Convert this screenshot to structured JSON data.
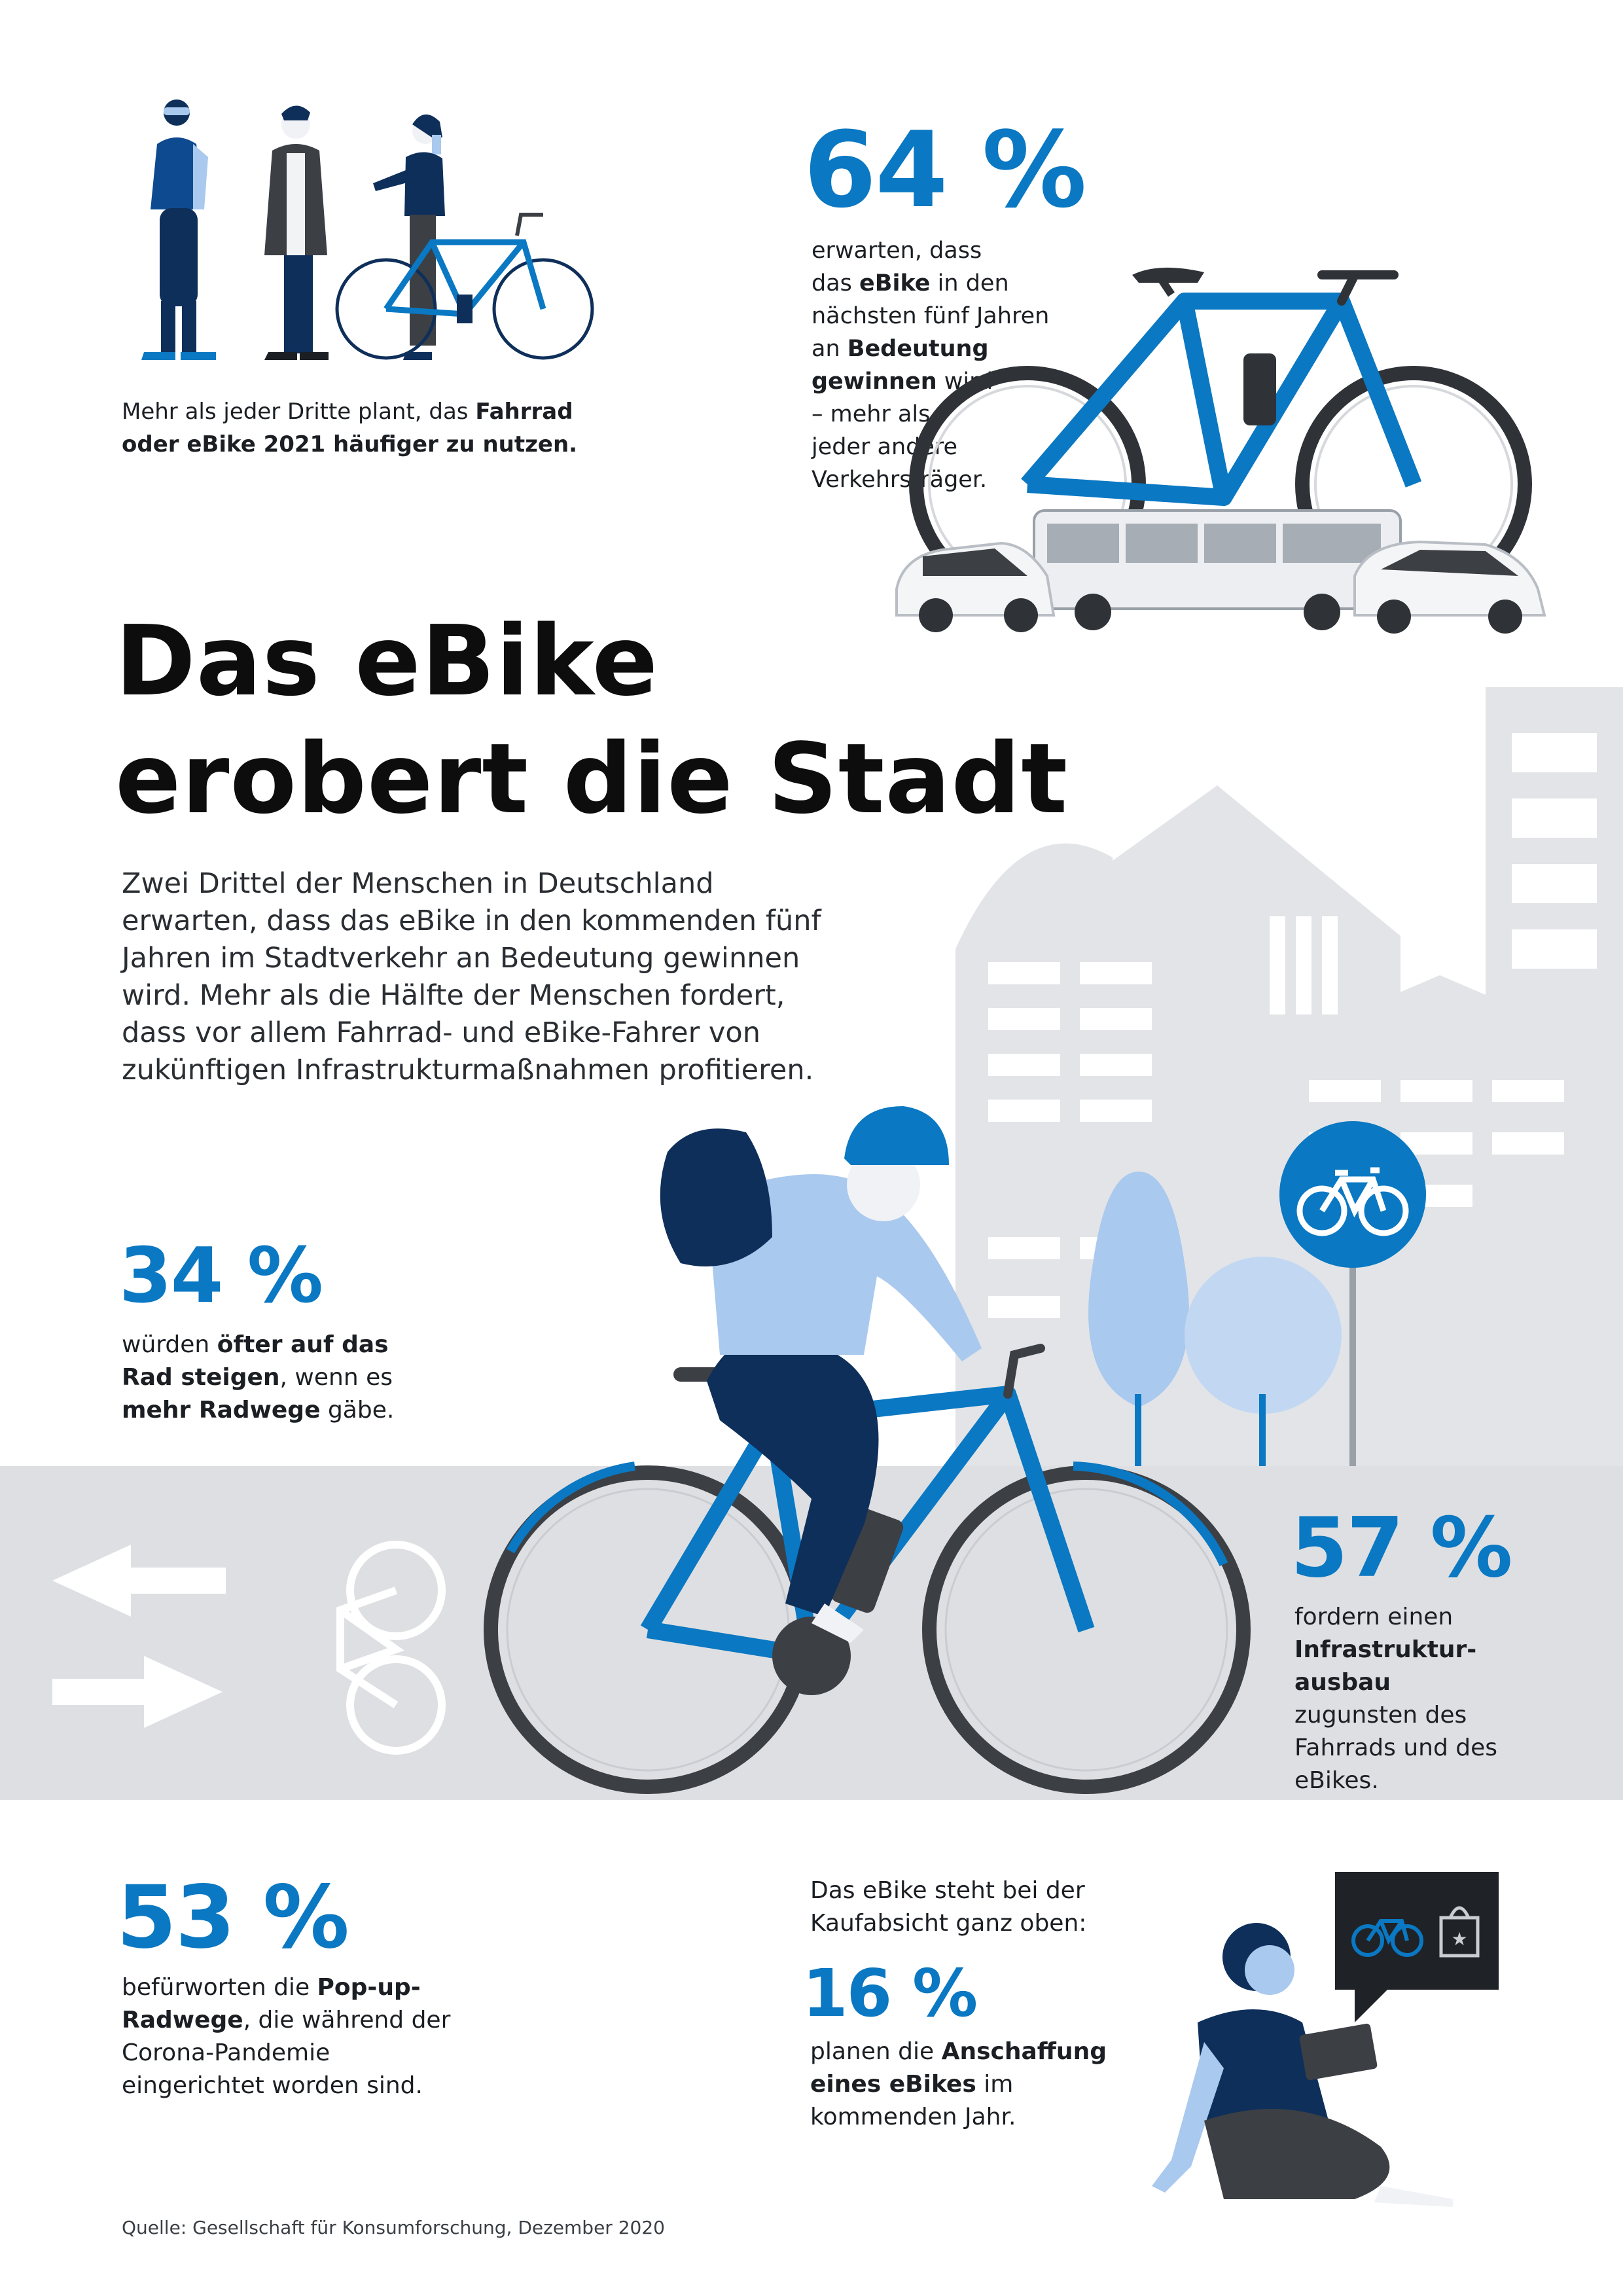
{
  "colors": {
    "accent_blue": "#0a78c2",
    "light_blue": "#a9c9ee",
    "navy": "#0e2f5a",
    "city_gray": "#e3e4e8",
    "road_gray": "#dedfe2",
    "text": "#1b1f24"
  },
  "intro_stat": {
    "text_prefix": "Mehr als jeder Dritte plant, das ",
    "text_bold": "Fahrrad oder eBike 2021 häufiger zu nutzen."
  },
  "stat_64": {
    "value": "64 %",
    "lines": [
      "erwarten, dass",
      "das ",
      "eBike",
      " in den",
      "nächsten fünf Jahren",
      "an ",
      "Bedeutung",
      "gewinnen",
      " wird",
      "– mehr als",
      "jeder andere",
      "Verkehrsträger."
    ]
  },
  "headline": {
    "line1": "Das eBike",
    "line2": "erobert die Stadt"
  },
  "intro_paragraph": "Zwei Drittel der Menschen in Deutschland erwarten, dass das eBike in den kommenden fünf Jahren im Stadtverkehr an Bedeutung gewinnen wird. Mehr als die Hälfte der Menschen fordert, dass vor allem Fahrrad- und eBike-Fahrer von zukünftigen Infrastrukturmaßnahmen profitieren.",
  "stat_34": {
    "value": "34 %",
    "t1": "würden ",
    "b1": "öfter auf das Rad steigen",
    "t2": ", wenn es ",
    "b2": "mehr Radwege",
    "t3": " gäbe."
  },
  "stat_57": {
    "value": "57 %",
    "t1": "fordern einen ",
    "b1": "Infrastruktur-ausbau",
    "t2": " zugunsten des Fahrrads und des eBikes."
  },
  "stat_53": {
    "value": "53 %",
    "t1": "befürworten die ",
    "b1": "Pop-up-Radwege",
    "t2": ", die während der Corona-Pandemie eingerichtet worden sind."
  },
  "purchase": {
    "lead": "Das eBike steht bei der Kaufabsicht ganz oben:",
    "value": "16 %",
    "t1": "planen die ",
    "b1": "Anschaffung eines eBikes",
    "t2": " im kommenden Jahr."
  },
  "source": "Quelle: Gesellschaft für Konsumforschung, Dezember 2020",
  "icons": [
    "person-icon",
    "bicycle-icon",
    "bus-icon",
    "car-icon",
    "cyclist-icon",
    "bike-lane-sign-icon",
    "arrow-left-icon",
    "arrow-right-icon",
    "shopping-bag-icon",
    "tablet-icon"
  ]
}
